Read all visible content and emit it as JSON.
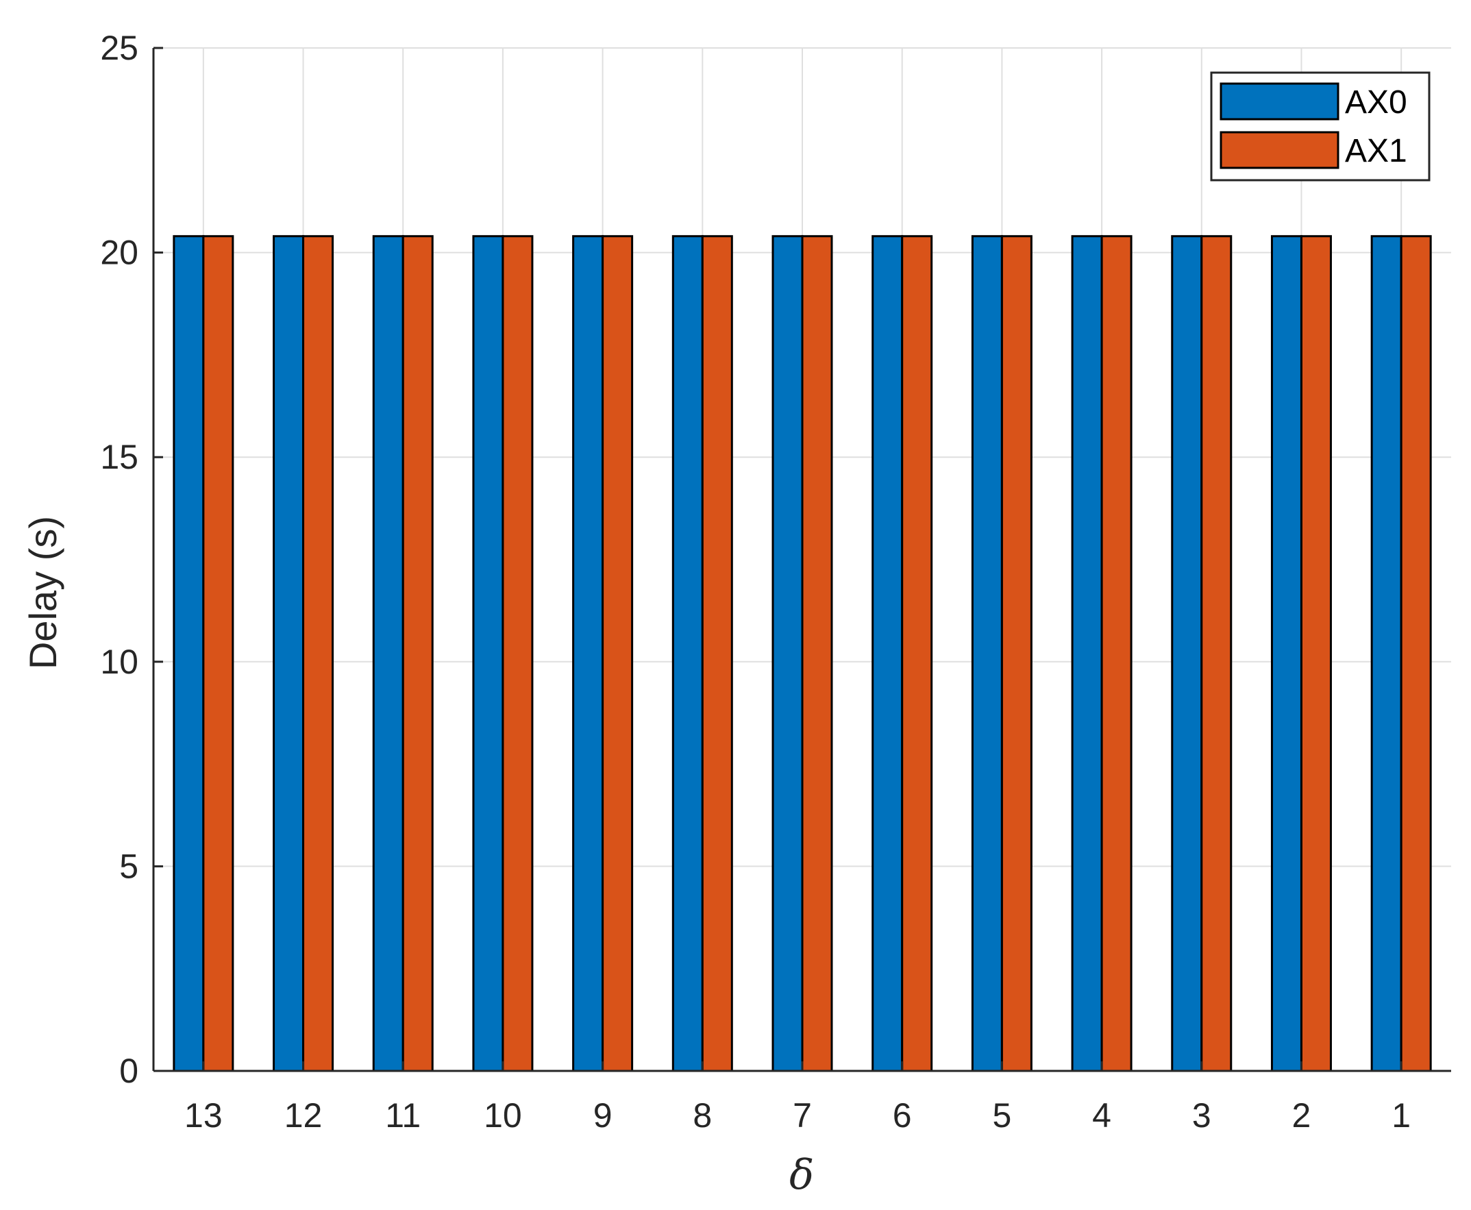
{
  "chart_data": {
    "type": "bar",
    "title": "",
    "xlabel": "δ",
    "ylabel": "Delay (s)",
    "categories": [
      "13",
      "12",
      "11",
      "10",
      "9",
      "8",
      "7",
      "6",
      "5",
      "4",
      "3",
      "2",
      "1"
    ],
    "series": [
      {
        "name": "AX0",
        "color": "#0072BD",
        "values": [
          20.4,
          20.4,
          20.4,
          20.4,
          20.4,
          20.4,
          20.4,
          20.4,
          20.4,
          20.4,
          20.4,
          20.4,
          20.4
        ]
      },
      {
        "name": "AX1",
        "color": "#D95319",
        "values": [
          20.4,
          20.4,
          20.4,
          20.4,
          20.4,
          20.4,
          20.4,
          20.4,
          20.4,
          20.4,
          20.4,
          20.4,
          20.4
        ]
      }
    ],
    "ylim": [
      0,
      25
    ],
    "yticks": [
      0,
      5,
      10,
      15,
      20,
      25
    ],
    "grid": true,
    "legend_position": "top-right"
  }
}
